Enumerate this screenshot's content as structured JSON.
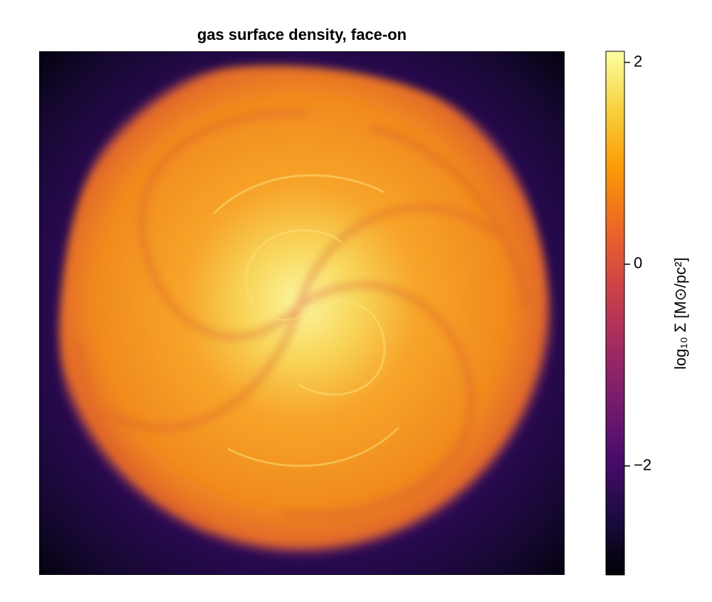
{
  "chart_data": {
    "type": "heatmap",
    "title": "gas surface density, face-on",
    "colorbar": {
      "label": "log₁₀ Σ [M⊙/pc²]",
      "lim": [
        -3.08,
        2.11
      ],
      "ticks": [
        {
          "value": -2,
          "label": "−2"
        },
        0,
        2
      ],
      "colormap": [
        "#000004",
        "#1b0c41",
        "#4a0c6b",
        "#781c6d",
        "#a52c60",
        "#cf4446",
        "#ed6925",
        "#fb9b06",
        "#f7d13d",
        "#fcffa4"
      ]
    }
  }
}
